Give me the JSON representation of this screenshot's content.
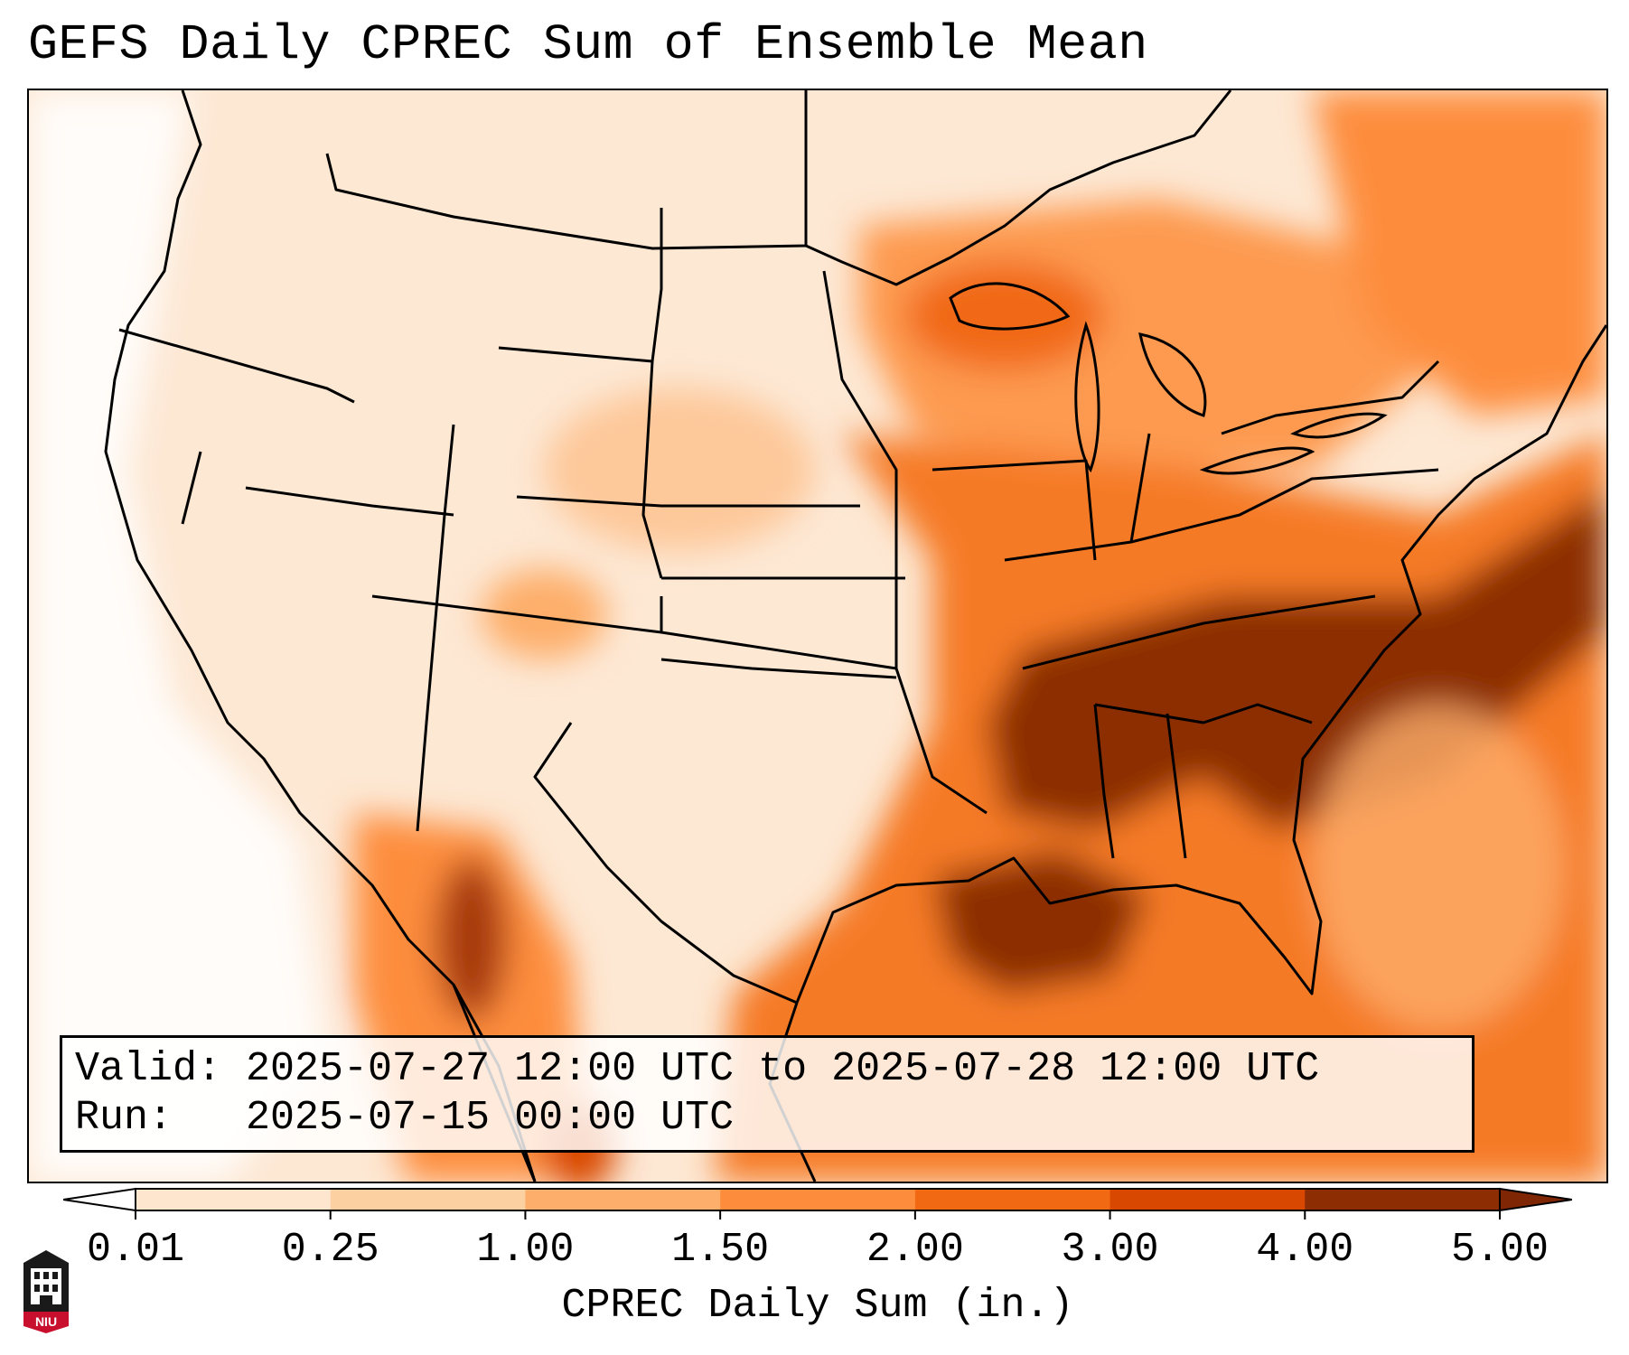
{
  "title": "GEFS Daily CPREC Sum of Ensemble Mean",
  "info": {
    "valid_line": "Valid: 2025-07-27 12:00 UTC to 2025-07-28 12:00 UTC",
    "run_line": "Run:   2025-07-15 00:00 UTC"
  },
  "colorbar": {
    "label": "CPREC Daily Sum (in.)",
    "ticks": [
      "0.01",
      "0.25",
      "1.00",
      "1.50",
      "2.00",
      "3.00",
      "4.00",
      "5.00"
    ],
    "colors": [
      "#fff5eb",
      "#fee6ce",
      "#fdd0a2",
      "#fdae6b",
      "#fd8d3c",
      "#f16913",
      "#d94801",
      "#8c2d04"
    ],
    "under_color": "#ffffff",
    "over_color": "#7f2704"
  },
  "logo": {
    "text": "NIU",
    "name": "niu-logo-icon"
  }
}
